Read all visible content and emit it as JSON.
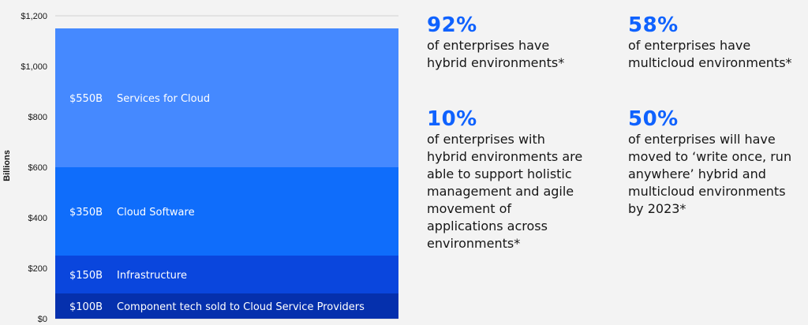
{
  "chart_data": {
    "type": "bar",
    "stacked": true,
    "ylabel": "Billions",
    "ylim": [
      0,
      1200
    ],
    "y_ticks": [
      "$0",
      "$200",
      "$400",
      "$600",
      "$800",
      "$1,000",
      "$1,200"
    ],
    "y_tick_values": [
      0,
      200,
      400,
      600,
      800,
      1000,
      1200
    ],
    "grid": true,
    "segments": [
      {
        "value": 100,
        "value_label": "$100B",
        "name": "Component tech sold to Cloud Service Providers",
        "color": "#0530ad"
      },
      {
        "value": 150,
        "value_label": "$150B",
        "name": "Infrastructure",
        "color": "#0a46dd"
      },
      {
        "value": 350,
        "value_label": "$350B",
        "name": "Cloud Software",
        "color": "#0f6dfb"
      },
      {
        "value": 550,
        "value_label": "$550B",
        "name": "Services for Cloud",
        "color": "#4589ff"
      }
    ]
  },
  "stats": [
    {
      "value": "92%",
      "text": "of enterprises have\nhybrid environments*"
    },
    {
      "value": "58%",
      "text": "of enterprises have\nmulticloud environments*"
    },
    {
      "value": "10%",
      "text": "of enterprises with\nhybrid environments are\nable to support holistic\nmanagement and agile\nmovement of\napplications across\nenvironments*"
    },
    {
      "value": "50%",
      "text": "of enterprises will have\nmoved to ‘write once, run\nanywhere’ hybrid and\nmulticloud environments\nby 2023*"
    }
  ]
}
